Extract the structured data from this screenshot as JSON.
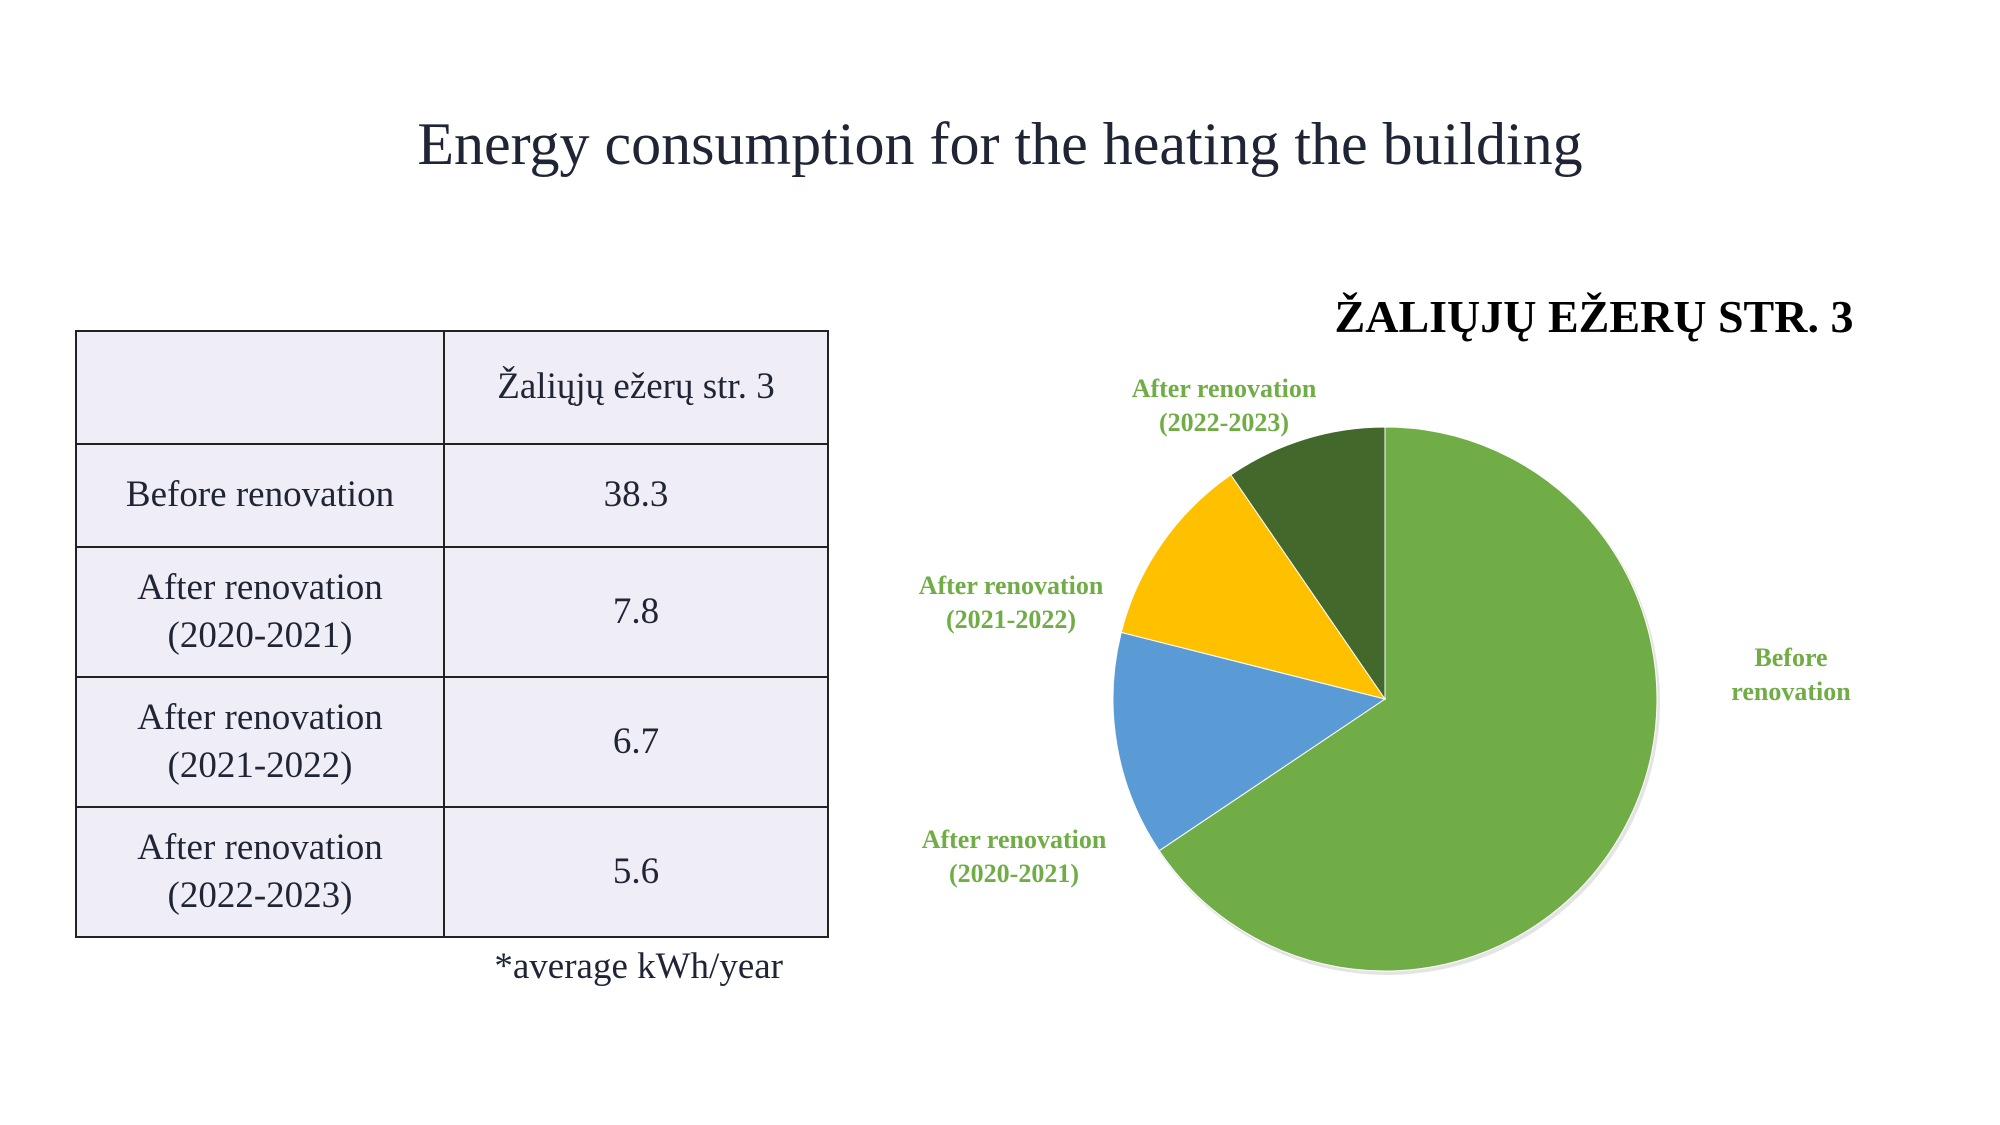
{
  "title": "Energy consumption for the heating the building",
  "table": {
    "header": [
      "",
      "Žaliųjų ežerų str. 3"
    ],
    "rows": [
      [
        "Before renovation",
        38.3
      ],
      [
        "After renovation (2020-2021)",
        7.8
      ],
      [
        "After renovation (2021-2022)",
        6.7
      ],
      [
        "After renovation (2022-2023)",
        5.6
      ]
    ]
  },
  "footnote": "*average kWh/year",
  "chart_data": {
    "type": "pie",
    "title": "ŽALIŲJŲ EŽERŲ STR. 3",
    "categories": [
      "Before renovation",
      "After renovation (2020-2021)",
      "After renovation (2021-2022)",
      "After renovation (2022-2023)"
    ],
    "values": [
      38.3,
      7.8,
      6.7,
      5.6
    ],
    "colors": [
      "#70ad47",
      "#5b9bd5",
      "#ffc000",
      "#43682b"
    ],
    "label_color": "#70ad47"
  }
}
